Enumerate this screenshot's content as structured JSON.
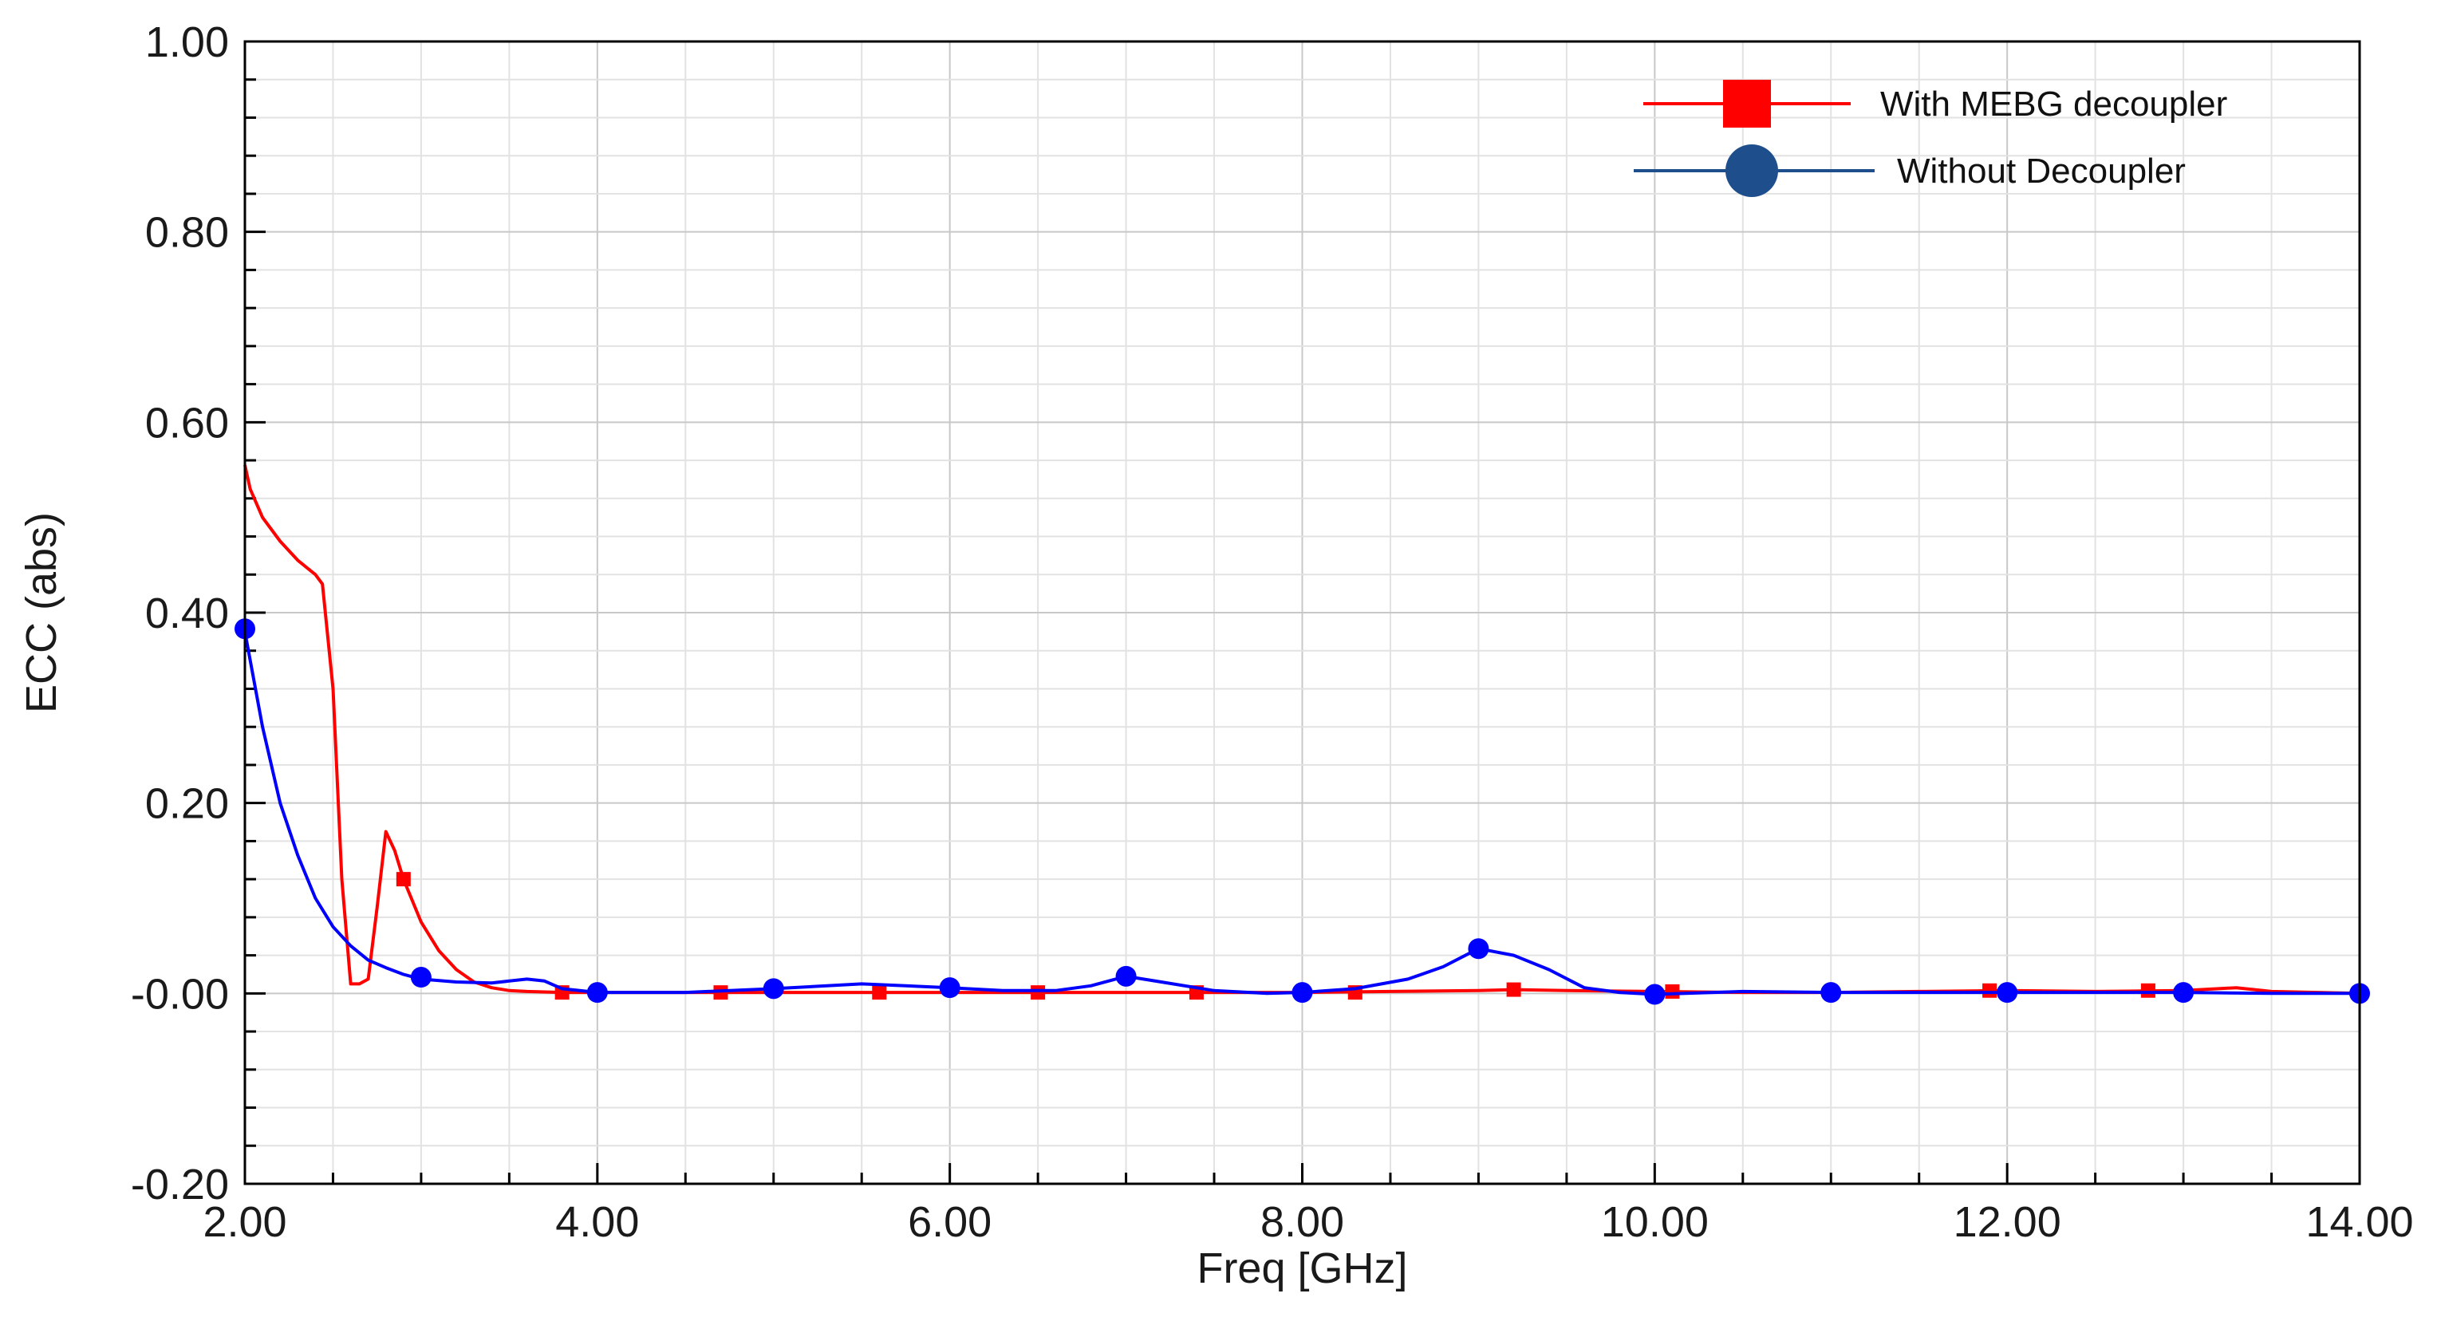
{
  "chart_data": {
    "type": "line",
    "title": "",
    "xlabel": "Freq [GHz]",
    "ylabel": "ECC (abs)",
    "xlim": [
      2,
      14
    ],
    "ylim": [
      -0.2,
      1.0
    ],
    "x_ticks": [
      "2.00",
      "4.00",
      "6.00",
      "8.00",
      "10.00",
      "12.00",
      "14.00"
    ],
    "y_ticks": [
      "-0.20",
      "-0.00",
      "0.20",
      "0.40",
      "0.60",
      "0.80",
      "1.00"
    ],
    "x_minor_step": 0.5,
    "y_minor_step": 0.04,
    "grid": true,
    "legend_position": "top-right",
    "series": [
      {
        "name": "With MEBG decoupler",
        "color": "#ff0000",
        "marker": "square",
        "x": [
          2.0,
          2.03,
          2.1,
          2.2,
          2.3,
          2.4,
          2.44,
          2.5,
          2.55,
          2.6,
          2.65,
          2.7,
          2.75,
          2.8,
          2.85,
          2.9,
          3.0,
          3.1,
          3.2,
          3.3,
          3.4,
          3.5,
          3.6,
          3.8,
          4.0,
          4.5,
          5.0,
          5.5,
          6.0,
          6.5,
          7.0,
          7.5,
          8.0,
          8.5,
          9.0,
          9.2,
          9.5,
          10.0,
          10.5,
          11.0,
          11.5,
          12.0,
          12.5,
          13.0,
          13.3,
          13.5,
          14.0
        ],
        "y": [
          0.555,
          0.53,
          0.5,
          0.475,
          0.455,
          0.44,
          0.43,
          0.32,
          0.12,
          0.01,
          0.01,
          0.015,
          0.09,
          0.17,
          0.15,
          0.12,
          0.075,
          0.045,
          0.025,
          0.012,
          0.006,
          0.003,
          0.002,
          0.001,
          0.001,
          0.001,
          0.001,
          0.001,
          0.001,
          0.001,
          0.001,
          0.001,
          0.001,
          0.002,
          0.003,
          0.004,
          0.003,
          0.002,
          0.001,
          0.001,
          0.002,
          0.003,
          0.002,
          0.003,
          0.006,
          0.002,
          0.0
        ],
        "marker_x": [
          2.9,
          3.8,
          4.7,
          5.6,
          6.5,
          7.4,
          8.3,
          9.2,
          10.1,
          11.0,
          11.9,
          12.8,
          14.0
        ],
        "marker_y": [
          0.12,
          0.001,
          0.001,
          0.001,
          0.001,
          0.001,
          0.001,
          0.004,
          0.002,
          0.001,
          0.003,
          0.003,
          0.0
        ]
      },
      {
        "name": "Without Decoupler",
        "color": "#0000ff",
        "marker": "circle",
        "x": [
          2.0,
          2.1,
          2.2,
          2.3,
          2.4,
          2.5,
          2.6,
          2.7,
          2.8,
          2.9,
          3.0,
          3.2,
          3.4,
          3.6,
          3.7,
          3.8,
          4.0,
          4.5,
          5.0,
          5.5,
          6.0,
          6.3,
          6.6,
          6.8,
          7.0,
          7.2,
          7.5,
          7.8,
          8.0,
          8.3,
          8.6,
          8.8,
          9.0,
          9.2,
          9.4,
          9.6,
          9.8,
          10.0,
          10.5,
          11.0,
          11.5,
          12.0,
          12.5,
          13.0,
          13.5,
          14.0
        ],
        "y": [
          0.38,
          0.28,
          0.2,
          0.145,
          0.1,
          0.07,
          0.05,
          0.035,
          0.027,
          0.02,
          0.015,
          0.012,
          0.011,
          0.015,
          0.013,
          0.005,
          0.001,
          0.001,
          0.005,
          0.01,
          0.006,
          0.003,
          0.003,
          0.008,
          0.018,
          0.012,
          0.003,
          0.0,
          0.001,
          0.005,
          0.015,
          0.028,
          0.047,
          0.04,
          0.025,
          0.006,
          0.001,
          -0.001,
          0.002,
          0.001,
          0.001,
          0.001,
          0.001,
          0.001,
          0.0,
          0.0
        ],
        "marker_x": [
          2.0,
          3.0,
          4.0,
          5.0,
          6.0,
          7.0,
          8.0,
          9.0,
          10.0,
          11.0,
          12.0,
          13.0,
          14.0
        ],
        "marker_y": [
          0.383,
          0.017,
          0.001,
          0.005,
          0.006,
          0.018,
          0.001,
          0.047,
          -0.001,
          0.001,
          0.001,
          0.001,
          0.0
        ]
      }
    ]
  }
}
